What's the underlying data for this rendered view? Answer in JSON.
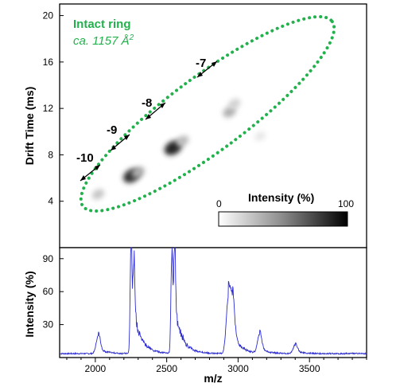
{
  "colors": {
    "spectrum_line": "#2b2bd0",
    "annotation_green": "#22b14c",
    "frame": "#000000"
  },
  "annotation": {
    "title": "Intact ring",
    "subtitle_prefix": "ca. 1157 Å",
    "subtitle_sup": "2"
  },
  "colorbar": {
    "title": "Intensity (%)",
    "min_label": "0",
    "max_label": "100"
  },
  "chart_data": [
    {
      "type": "heatmap",
      "xlabel": "",
      "ylabel": "Drift Time (ms)",
      "xlim": [
        1750,
        3900
      ],
      "ylim": [
        0,
        21
      ],
      "yticks": [
        "4",
        "8",
        "12",
        "16",
        "20"
      ],
      "colorscale": "white-to-black",
      "spots": [
        {
          "mz": 2020,
          "drift": 4.6,
          "intensity": 25
        },
        {
          "mz": 2255,
          "drift": 6.2,
          "intensity": 90
        },
        {
          "mz": 2300,
          "drift": 6.5,
          "intensity": 35
        },
        {
          "mz": 2545,
          "drift": 8.6,
          "intensity": 95
        },
        {
          "mz": 2610,
          "drift": 9.2,
          "intensity": 30
        },
        {
          "mz": 2940,
          "drift": 11.7,
          "intensity": 35
        },
        {
          "mz": 2975,
          "drift": 12.4,
          "intensity": 20
        },
        {
          "mz": 3155,
          "drift": 9.6,
          "intensity": 10
        }
      ],
      "charge_state_labels": [
        {
          "text": "-10",
          "mz": 2000,
          "drift": 6.9
        },
        {
          "text": "-9",
          "mz": 2240,
          "drift": 9.2
        },
        {
          "text": "-8",
          "mz": 2550,
          "drift": 11.5
        },
        {
          "text": "-7",
          "mz": 2950,
          "drift": 15.3
        }
      ]
    },
    {
      "type": "line",
      "xlabel": "m/z",
      "ylabel": "Intensity (%)",
      "xlim": [
        1750,
        3900
      ],
      "ylim": [
        0,
        100
      ],
      "xticks": [
        "2000",
        "2500",
        "3000",
        "3500"
      ],
      "yticks": [
        "30",
        "60",
        "90"
      ],
      "peaks": [
        {
          "mz": 2020,
          "height": 16
        },
        {
          "mz": 2250,
          "height": 100
        },
        {
          "mz": 2270,
          "height": 65
        },
        {
          "mz": 2535,
          "height": 84
        },
        {
          "mz": 2555,
          "height": 84
        },
        {
          "mz": 2930,
          "height": 47
        },
        {
          "mz": 2960,
          "height": 42
        },
        {
          "mz": 3150,
          "height": 17
        },
        {
          "mz": 3400,
          "height": 8
        }
      ],
      "baseline": 3
    }
  ]
}
